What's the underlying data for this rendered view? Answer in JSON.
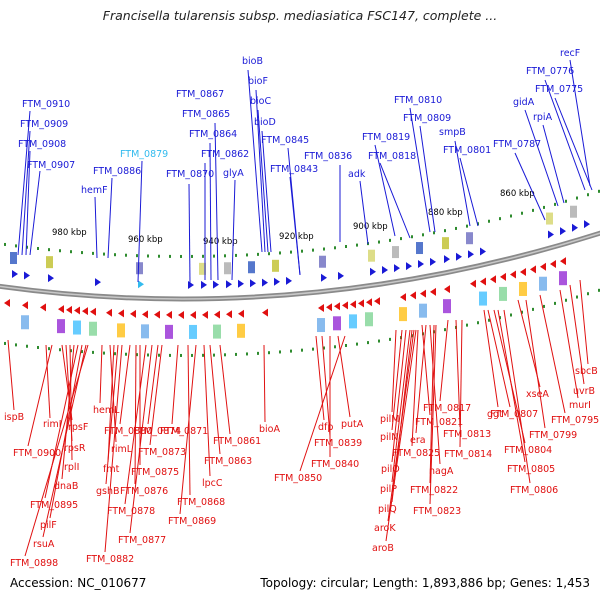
{
  "title": "Francisella tularensis subsp. mediasiatica FSC147, complete ...",
  "footer": {
    "accession": "Accession: NC_010677",
    "summary": "Topology: circular; Length: 1,893,886 bp; Genes: 1,453"
  },
  "colors": {
    "forward": "#1a1ad6",
    "reverse": "#e01010",
    "highlight": "#33bbee",
    "backbone": "#8a8a8a",
    "tick": "#2e8b2e"
  },
  "scale_labels": [
    "980 kbp",
    "960 kbp",
    "940 kbp",
    "920 kbp",
    "900 kbp",
    "880 kbp",
    "860 kbp"
  ],
  "forward_labels": [
    "FTM_0910",
    "FTM_0909",
    "FTM_0908",
    "FTM_0907",
    "hemF",
    "FTM_0886",
    "FTM_0879",
    "FTM_0867",
    "FTM_0865",
    "FTM_0864",
    "FTM_0862",
    "FTM_0870",
    "glyA",
    "bioB",
    "bioF",
    "bioC",
    "bioD",
    "FTM_0845",
    "FTM_0843",
    "FTM_0836",
    "adk",
    "FTM_0810",
    "FTM_0809",
    "FTM_0819",
    "FTM_0818",
    "smpB",
    "FTM_0801",
    "FTM_0787",
    "gidA",
    "rpiA",
    "recF",
    "FTM_0776",
    "FTM_0775"
  ],
  "reverse_labels": [
    "ispB",
    "rimI",
    "FTM_0900",
    "rpsF",
    "rpsR",
    "rplI",
    "dnaB",
    "FTM_0895",
    "pilF",
    "rsuA",
    "FTM_0898",
    "hemL",
    "rimL",
    "fmt",
    "gshB",
    "FTM_0882",
    "FTM_0880",
    "FTM_0876",
    "FTM_0875",
    "FTM_0878",
    "FTM_0877",
    "FTM_0874",
    "FTM_0873",
    "FTM_0871",
    "FTM_0868",
    "FTM_0869",
    "lpcC",
    "FTM_0863",
    "FTM_0861",
    "bioA",
    "dfp",
    "FTM_0839",
    "FTM_0840",
    "putA",
    "FTM_0850",
    "pilM",
    "pilN",
    "pilO",
    "pilP",
    "pilQ",
    "aroK",
    "aroB",
    "FTM_0825",
    "FTM_0821",
    "era",
    "nagA",
    "FTM_0822",
    "FTM_0823",
    "FTM_0817",
    "FTM_0813",
    "FTM_0814",
    "ggt",
    "FTM_0807",
    "FTM_0804",
    "FTM_0805",
    "FTM_0806",
    "xseA",
    "FTM_0799",
    "FTM_0795",
    "murI",
    "uvrB",
    "sbcB"
  ]
}
